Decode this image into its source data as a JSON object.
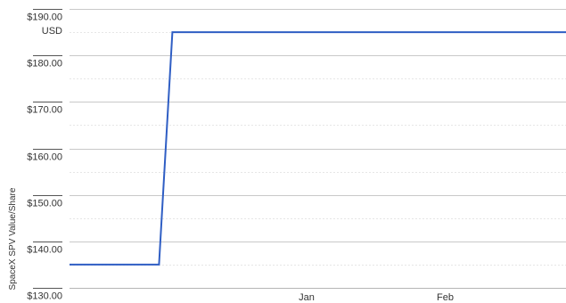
{
  "chart_data": {
    "type": "line",
    "ylabel": "SpaceX SPV Value/Share",
    "unit_label": "USD",
    "ylim": [
      130,
      190
    ],
    "y_ticks": [
      {
        "value": 190,
        "label": "$190.00"
      },
      {
        "value": 180,
        "label": "$180.00"
      },
      {
        "value": 170,
        "label": "$170.00"
      },
      {
        "value": 160,
        "label": "$160.00"
      },
      {
        "value": 150,
        "label": "$150.00"
      },
      {
        "value": 140,
        "label": "$140.00"
      },
      {
        "value": 130,
        "label": "$130.00"
      }
    ],
    "y_minor_ticks": [
      185,
      175,
      165,
      155,
      145,
      135
    ],
    "xlim": [
      "2023-11-09",
      "2024-02-28"
    ],
    "x_ticks": [
      {
        "value": "2024-01-01",
        "label": "Jan"
      },
      {
        "value": "2024-02-01",
        "label": "Feb"
      }
    ],
    "series": [
      {
        "color": "#2f5ec4",
        "points": [
          {
            "x": "2023-11-09",
            "y": 135.0
          },
          {
            "x": "2023-11-29",
            "y": 135.0
          },
          {
            "x": "2023-12-02",
            "y": 185.0
          },
          {
            "x": "2024-02-28",
            "y": 185.0
          }
        ]
      }
    ],
    "grid": true,
    "legend": "none"
  }
}
